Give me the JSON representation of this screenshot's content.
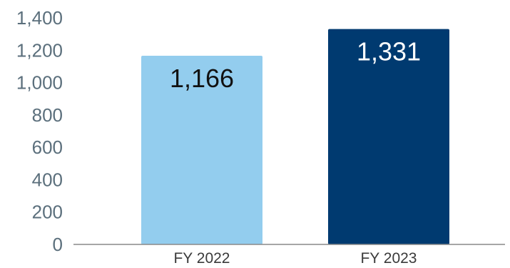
{
  "chart_data": {
    "type": "bar",
    "title": "",
    "xlabel": "",
    "ylabel": "",
    "categories": [
      "FY 2022",
      "FY 2023"
    ],
    "values": [
      1166,
      1331
    ],
    "data_labels": [
      "1,166",
      "1,331"
    ],
    "ylim": [
      0,
      1400
    ],
    "yticks": [
      0,
      200,
      400,
      600,
      800,
      1000,
      1200,
      1400
    ],
    "ytick_labels": [
      "0",
      "200",
      "400",
      "600",
      "800",
      "1,000",
      "1,200",
      "1,400"
    ],
    "grid": false,
    "legend": "none",
    "colors": [
      "#93cdee",
      "#003a70"
    ],
    "label_colors": [
      "#111111",
      "#ffffff"
    ],
    "axis_color": "#8a8a8a"
  }
}
